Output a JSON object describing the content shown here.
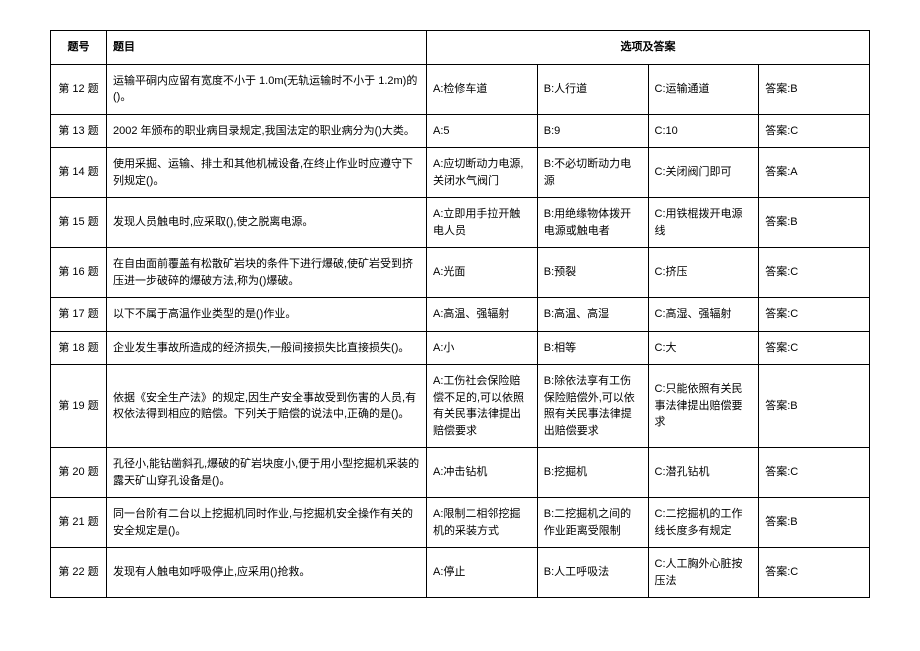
{
  "table": {
    "headers": {
      "num": "题号",
      "question": "题目",
      "options": "选项及答案"
    },
    "rows": [
      {
        "num": "第 12 题",
        "question": "运输平硐内应留有宽度不小于 1.0m(无轨运输时不小于 1.2m)的()。",
        "a": "A:检修车道",
        "b": "B:人行道",
        "c": "C:运输通道",
        "ans": "答案:B"
      },
      {
        "num": "第 13 题",
        "question": "2002 年颁布的职业病目录规定,我国法定的职业病分为()大类。",
        "a": "A:5",
        "b": "B:9",
        "c": "C:10",
        "ans": "答案:C"
      },
      {
        "num": "第 14 题",
        "question": "使用采掘、运输、排土和其他机械设备,在终止作业时应遵守下列规定()。",
        "a": "A:应切断动力电源,关闭水气阀门",
        "b": "B:不必切断动力电源",
        "c": "C:关闭阀门即可",
        "ans": "答案:A"
      },
      {
        "num": "第 15 题",
        "question": "发现人员触电时,应采取(),使之脱离电源。",
        "a": "A:立即用手拉开触电人员",
        "b": "B:用绝缘物体拨开电源或触电者",
        "c": "C:用铁棍拨开电源线",
        "ans": "答案:B"
      },
      {
        "num": "第 16 题",
        "question": "在自由面前覆盖有松散矿岩块的条件下进行爆破,使矿岩受到挤压进一步破碎的爆破方法,称为()爆破。",
        "a": "A:光面",
        "b": "B:预裂",
        "c": "C:挤压",
        "ans": "答案:C"
      },
      {
        "num": "第 17 题",
        "question": "以下不属于高温作业类型的是()作业。",
        "a": "A:高温、强辐射",
        "b": "B:高温、高湿",
        "c": "C:高湿、强辐射",
        "ans": "答案:C"
      },
      {
        "num": "第 18 题",
        "question": "企业发生事故所造成的经济损失,一般间接损失比直接损失()。",
        "a": "A:小",
        "b": "B:相等",
        "c": "C:大",
        "ans": "答案:C"
      },
      {
        "num": "第 19 题",
        "question": "依据《安全生产法》的规定,因生产安全事故受到伤害的人员,有权依法得到相应的赔偿。下列关于赔偿的说法中,正确的是()。",
        "a": "A:工伤社会保险赔偿不足的,可以依照有关民事法律提出赔偿要求",
        "b": "B:除依法享有工伤保险赔偿外,可以依照有关民事法律提出赔偿要求",
        "c": "C:只能依照有关民事法律提出赔偿要求",
        "ans": "答案:B"
      },
      {
        "num": "第 20 题",
        "question": "孔径小,能钻凿斜孔,爆破的矿岩块度小,便于用小型挖掘机采装的露天矿山穿孔设备是()。",
        "a": "A:冲击钻机",
        "b": "B:挖掘机",
        "c": "C:潜孔钻机",
        "ans": "答案:C"
      },
      {
        "num": "第 21 题",
        "question": "同一台阶有二台以上挖掘机同时作业,与挖掘机安全操作有关的安全规定是()。",
        "a": "A:限制二相邻挖掘机的采装方式",
        "b": "B:二挖掘机之间的作业距离受限制",
        "c": "C:二挖掘机的工作线长度多有规定",
        "ans": "答案:B"
      },
      {
        "num": "第 22 题",
        "question": "发现有人触电如呼吸停止,应采用()抢救。",
        "a": "A:停止",
        "b": "B:人工呼吸法",
        "c": "C:人工胸外心脏按压法",
        "ans": "答案:C"
      }
    ],
    "border_color": "#000000",
    "background_color": "#ffffff",
    "font_size": 11
  }
}
